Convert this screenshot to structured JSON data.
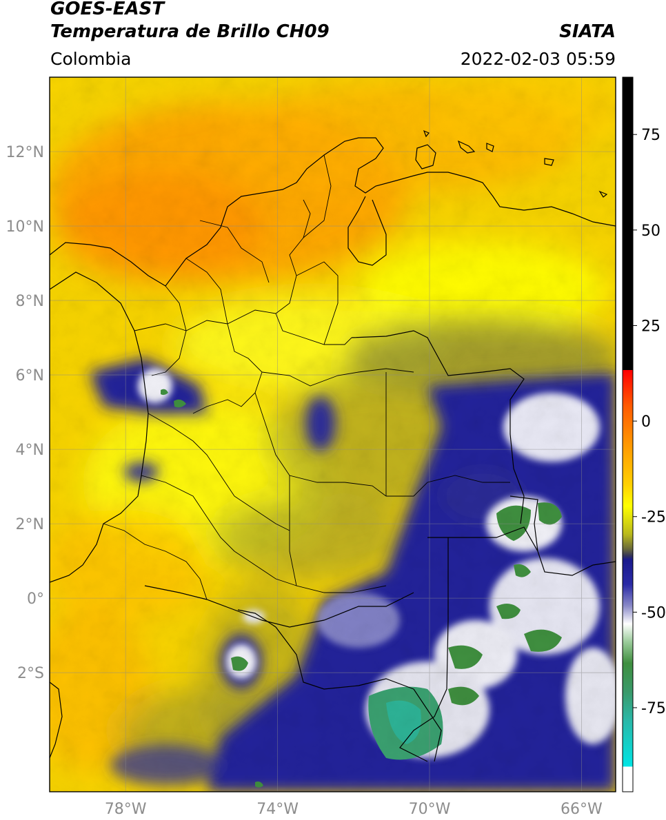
{
  "header": {
    "satellite": "GOES-EAST",
    "product": "Temperatura de Brillo CH09",
    "region": "Colombia",
    "brand": "SIATA",
    "datetime": "2022-02-03 05:59"
  },
  "map": {
    "lat_labels": [
      "12°N",
      "10°N",
      "8°N",
      "6°N",
      "4°N",
      "2°N",
      "0°",
      "2°S"
    ],
    "lon_labels": [
      "78°W",
      "74°W",
      "70°W",
      "66°W"
    ],
    "extent": {
      "lon_min": -80,
      "lon_max": -65.1,
      "lat_min": -5.2,
      "lat_max": 14
    }
  },
  "colorbar": {
    "ticks": [
      "75",
      "50",
      "25",
      "0",
      "-25",
      "-50",
      "-75"
    ],
    "min": -97,
    "max": 90,
    "colors": {
      "warm_black": "#000000",
      "red": "#ff2200",
      "orange": "#ff9900",
      "yellow": "#ffff00",
      "olive": "#6b6b3a",
      "navy": "#1a1a8c",
      "white": "#ffffff",
      "green": "#3f8f3f",
      "teal": "#2ab8a8",
      "cyan": "#00e5e5"
    }
  }
}
